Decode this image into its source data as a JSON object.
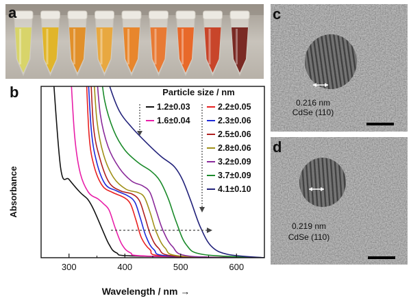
{
  "figure": {
    "panel_a": {
      "label": "a"
    },
    "panel_b": {
      "label": "b"
    },
    "panel_c": {
      "label": "c",
      "lattice_spacing": "0.216 nm",
      "lattice_plane": "CdSe (110)"
    },
    "panel_d": {
      "label": "d",
      "lattice_spacing": "0.219 nm",
      "lattice_plane": "CdSe (110)"
    }
  },
  "tubes": [
    {
      "color": "#d8d46a"
    },
    {
      "color": "#e1b52a"
    },
    {
      "color": "#e1902a"
    },
    {
      "color": "#e8a840"
    },
    {
      "color": "#e8862c"
    },
    {
      "color": "#e87a34"
    },
    {
      "color": "#e8692a"
    },
    {
      "color": "#c8452a"
    },
    {
      "color": "#7a2a24"
    }
  ],
  "chart_data": {
    "type": "line",
    "xlabel": "Wavelength / nm →",
    "ylabel": "Absorbance",
    "xlim": [
      250,
      650
    ],
    "xticks": [
      "300",
      "400",
      "500",
      "600"
    ],
    "legend_title": "Particle size / nm",
    "grid": false,
    "series": [
      {
        "name": "1.2±0.03",
        "color": "#111111",
        "points": [
          [
            270,
            1.2
          ],
          [
            285,
            0.55
          ],
          [
            300,
            0.48
          ],
          [
            320,
            0.4
          ],
          [
            333,
            0.36
          ],
          [
            342,
            0.31
          ],
          [
            350,
            0.25
          ],
          [
            360,
            0.17
          ],
          [
            372,
            0.08
          ],
          [
            385,
            0.03
          ],
          [
            420,
            0.01
          ],
          [
            650,
            0.0
          ]
        ]
      },
      {
        "name": "1.6±0.04",
        "color": "#e81ea8",
        "points": [
          [
            302,
            1.2
          ],
          [
            310,
            0.75
          ],
          [
            320,
            0.52
          ],
          [
            335,
            0.4
          ],
          [
            352,
            0.36
          ],
          [
            362,
            0.33
          ],
          [
            372,
            0.29
          ],
          [
            383,
            0.18
          ],
          [
            395,
            0.08
          ],
          [
            410,
            0.03
          ],
          [
            440,
            0.01
          ],
          [
            650,
            0.0
          ]
        ]
      },
      {
        "name": "2.2±0.05",
        "color": "#e82020",
        "points": [
          [
            330,
            1.2
          ],
          [
            336,
            0.75
          ],
          [
            345,
            0.56
          ],
          [
            360,
            0.44
          ],
          [
            378,
            0.4
          ],
          [
            398,
            0.37
          ],
          [
            410,
            0.33
          ],
          [
            420,
            0.23
          ],
          [
            430,
            0.12
          ],
          [
            445,
            0.05
          ],
          [
            470,
            0.01
          ],
          [
            650,
            0.0
          ]
        ]
      },
      {
        "name": "2.3±0.06",
        "color": "#1e2ad8",
        "points": [
          [
            333,
            1.2
          ],
          [
            340,
            0.78
          ],
          [
            350,
            0.58
          ],
          [
            365,
            0.45
          ],
          [
            385,
            0.41
          ],
          [
            405,
            0.38
          ],
          [
            418,
            0.34
          ],
          [
            428,
            0.24
          ],
          [
            438,
            0.13
          ],
          [
            452,
            0.05
          ],
          [
            480,
            0.01
          ],
          [
            650,
            0.0
          ]
        ]
      },
      {
        "name": "2.5±0.06",
        "color": "#b02020",
        "points": [
          [
            338,
            1.2
          ],
          [
            344,
            0.8
          ],
          [
            356,
            0.6
          ],
          [
            372,
            0.46
          ],
          [
            392,
            0.41
          ],
          [
            413,
            0.39
          ],
          [
            426,
            0.35
          ],
          [
            436,
            0.25
          ],
          [
            446,
            0.14
          ],
          [
            460,
            0.06
          ],
          [
            490,
            0.01
          ],
          [
            650,
            0.0
          ]
        ]
      },
      {
        "name": "2.8±0.06",
        "color": "#a09018",
        "points": [
          [
            343,
            1.2
          ],
          [
            350,
            0.84
          ],
          [
            362,
            0.63
          ],
          [
            380,
            0.49
          ],
          [
            402,
            0.42
          ],
          [
            423,
            0.4
          ],
          [
            435,
            0.37
          ],
          [
            446,
            0.27
          ],
          [
            456,
            0.16
          ],
          [
            472,
            0.06
          ],
          [
            500,
            0.01
          ],
          [
            650,
            0.0
          ]
        ]
      },
      {
        "name": "3.2±0.09",
        "color": "#8a2a9a",
        "points": [
          [
            348,
            1.2
          ],
          [
            356,
            0.88
          ],
          [
            370,
            0.68
          ],
          [
            390,
            0.55
          ],
          [
            412,
            0.47
          ],
          [
            432,
            0.44
          ],
          [
            445,
            0.4
          ],
          [
            456,
            0.29
          ],
          [
            468,
            0.17
          ],
          [
            485,
            0.07
          ],
          [
            515,
            0.01
          ],
          [
            650,
            0.0
          ]
        ]
      },
      {
        "name": "3.7±0.09",
        "color": "#1a8a2a",
        "points": [
          [
            355,
            1.2
          ],
          [
            364,
            0.96
          ],
          [
            380,
            0.78
          ],
          [
            400,
            0.66
          ],
          [
            425,
            0.58
          ],
          [
            447,
            0.53
          ],
          [
            463,
            0.47
          ],
          [
            478,
            0.36
          ],
          [
            492,
            0.22
          ],
          [
            510,
            0.08
          ],
          [
            540,
            0.02
          ],
          [
            650,
            0.0
          ]
        ]
      },
      {
        "name": "4.1±0.10",
        "color": "#22227a",
        "points": [
          [
            362,
            1.2
          ],
          [
            372,
            1.06
          ],
          [
            390,
            0.9
          ],
          [
            412,
            0.8
          ],
          [
            440,
            0.7
          ],
          [
            465,
            0.62
          ],
          [
            488,
            0.56
          ],
          [
            503,
            0.48
          ],
          [
            518,
            0.35
          ],
          [
            535,
            0.19
          ],
          [
            555,
            0.07
          ],
          [
            585,
            0.02
          ],
          [
            650,
            0.0
          ]
        ]
      }
    ]
  }
}
